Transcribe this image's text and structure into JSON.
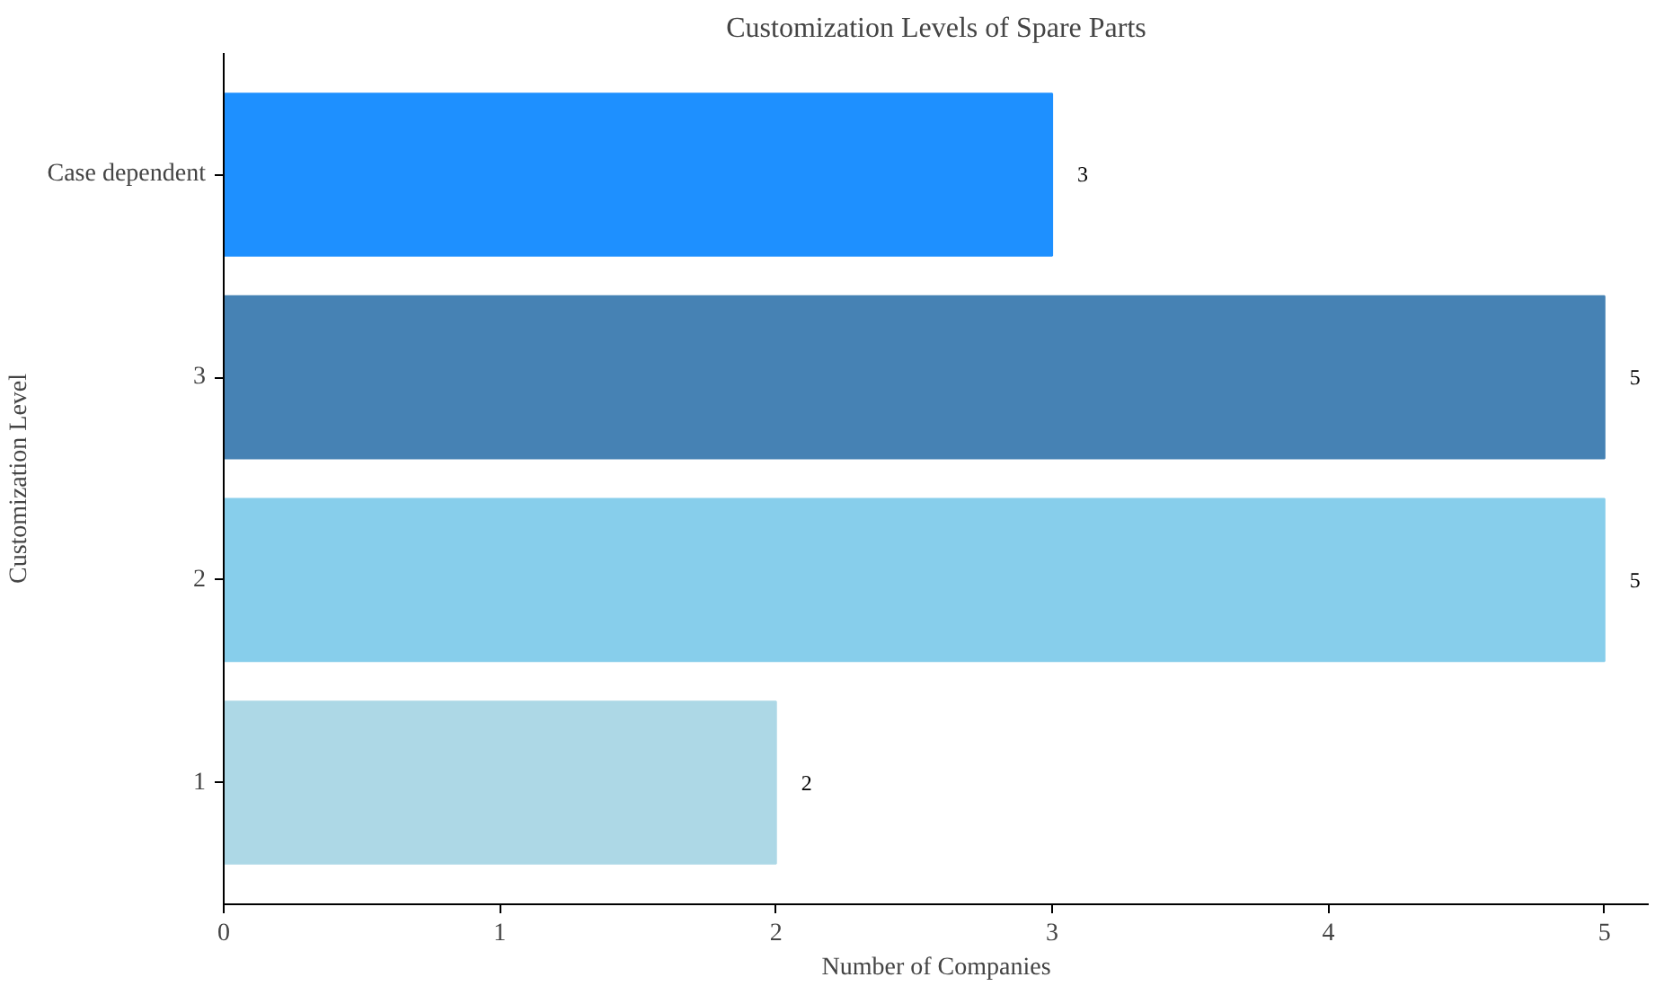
{
  "chart_data": {
    "type": "bar",
    "orientation": "horizontal",
    "title": "Customization Levels of Spare Parts",
    "xlabel": "Number of Companies",
    "ylabel": "Customization Level",
    "categories": [
      "Case dependent",
      "3",
      "2",
      "1"
    ],
    "values": [
      3,
      5,
      5,
      2
    ],
    "colors": [
      "#1e90ff",
      "#4682b4",
      "#87ceeb",
      "#add8e6"
    ],
    "xlim": [
      0,
      5.16
    ],
    "xticks": [
      0,
      1,
      2,
      3,
      4,
      5
    ],
    "data_labels": true
  }
}
